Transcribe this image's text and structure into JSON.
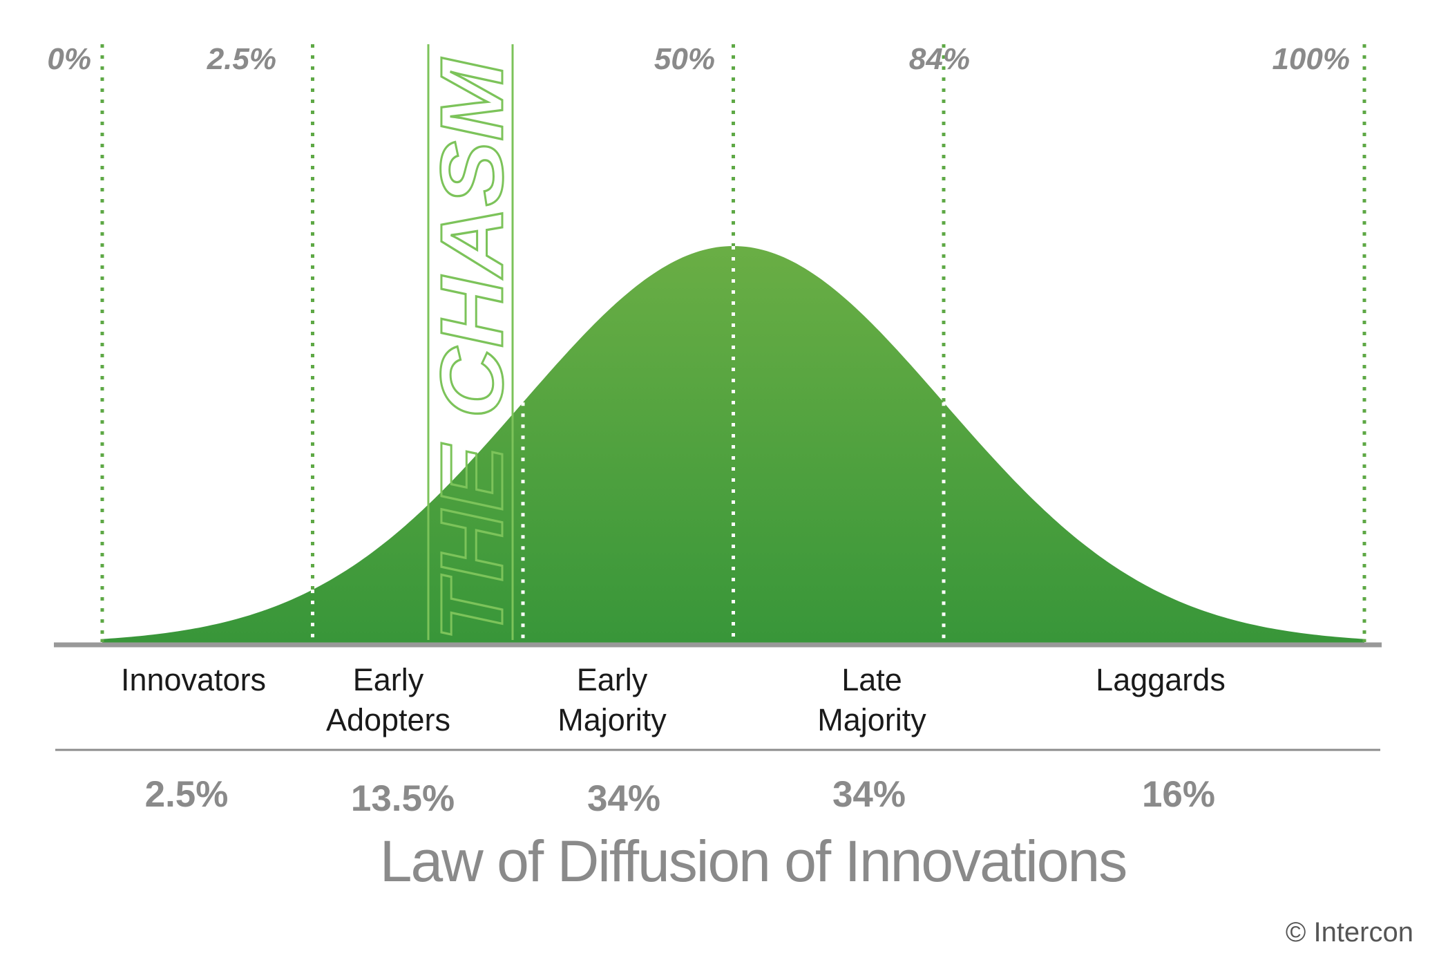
{
  "chart_data": {
    "type": "area",
    "title": "Law of Diffusion of Innovations",
    "credit": "© Intercon",
    "chasm_label": "THE CHASM",
    "cumulative_markers": [
      {
        "label": "0%",
        "at": 0
      },
      {
        "label": "2.5%",
        "at": 2.5
      },
      {
        "label": "50%",
        "at": 50
      },
      {
        "label": "84%",
        "at": 84
      },
      {
        "label": "100%",
        "at": 100
      }
    ],
    "segments": [
      {
        "name": [
          "Innovators"
        ],
        "share": "2.5%",
        "value": 2.5
      },
      {
        "name": [
          "Early",
          "Adopters"
        ],
        "share": "13.5%",
        "value": 13.5
      },
      {
        "name": [
          "Early",
          "Majority"
        ],
        "share": "34%",
        "value": 34
      },
      {
        "name": [
          "Late",
          "Majority"
        ],
        "share": "34%",
        "value": 34
      },
      {
        "name": [
          "Laggards"
        ],
        "share": "16%",
        "value": 16
      }
    ],
    "curve": {
      "distribution": "normal",
      "x_sigma": [
        -3.0,
        3.0
      ]
    },
    "boundaries_sigma": [
      -3.0,
      -2.0,
      -1.0,
      0.0,
      1.0,
      3.0
    ],
    "grid": false,
    "colors": {
      "curve_top": "#6aae45",
      "curve_bottom": "#389639",
      "marker_lines": "#5ea845",
      "chasm": "#7cc35a",
      "baseline": "#999999",
      "labels": "#8a8a8a"
    }
  }
}
